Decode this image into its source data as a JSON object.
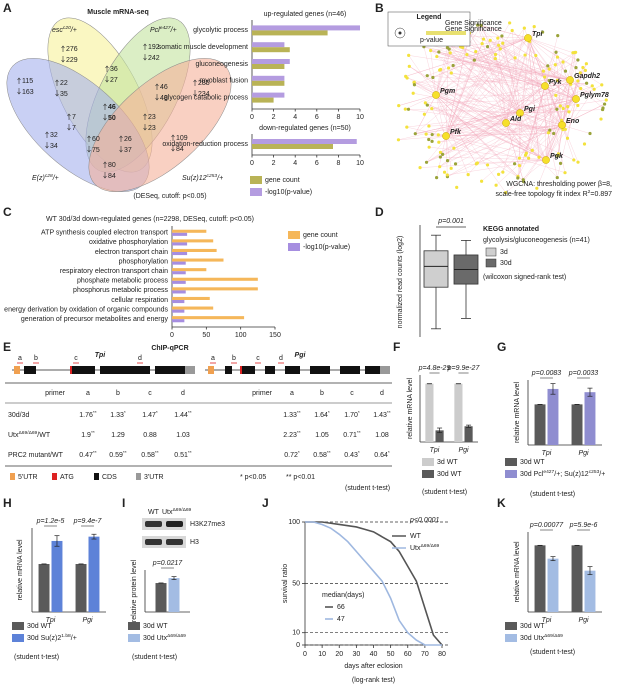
{
  "panels": [
    "A",
    "B",
    "C",
    "D",
    "E",
    "F",
    "G",
    "H",
    "I",
    "J",
    "K"
  ],
  "venn": {
    "title": "Muscle mRNA-seq",
    "sets": [
      {
        "label": [
          "esc",
          "c20",
          "/+"
        ],
        "color": "#f7f29a"
      },
      {
        "label": [
          "Pcl",
          "e427",
          "/+"
        ],
        "color": "#c3e39e"
      },
      {
        "label": [
          "E(z)",
          "c28",
          "/+"
        ],
        "color": "#a5b1ec"
      },
      {
        "label": [
          "Su(z)12",
          "c253",
          "/+"
        ],
        "color": "#f5b09a"
      }
    ],
    "regions": [
      {
        "up": 276,
        "down": 229
      },
      {
        "up": 192,
        "down": 242
      },
      {
        "up": 115,
        "down": 163
      },
      {
        "up": 285,
        "down": 234
      },
      {
        "up": 36,
        "down": 27
      },
      {
        "up": 22,
        "down": 35
      },
      {
        "up": 46,
        "down": 48
      },
      {
        "up": 7,
        "down": 7
      },
      {
        "up": 23,
        "down": 23
      },
      {
        "up": 32,
        "down": 34
      },
      {
        "up": 46,
        "down": 50
      },
      {
        "up": 60,
        "down": 75
      },
      {
        "up": 26,
        "down": 37
      },
      {
        "up": 109,
        "down": 84
      },
      {
        "up": 80,
        "down": 84
      }
    ],
    "note": "(DESeq, cutoff: p<0.05)"
  },
  "network": {
    "legend": {
      "title": "Legend",
      "items": [
        "Gene Significance",
        "Gene Significance",
        "p-value"
      ]
    },
    "genes": [
      "Tpi",
      "Pyk",
      "Gapdh2",
      "Pglym78",
      "Pgm",
      "Pgi",
      "Ald",
      "Eno",
      "Pfk",
      "Pgk"
    ],
    "caption": [
      [
        "WGCNA: thresholding power β=8,"
      ],
      [
        "scale-free topology fit index R",
        "2",
        "=0.897"
      ]
    ]
  },
  "chip": {
    "title": "ChIP-qPCR",
    "rows": [
      "30d/3d",
      [
        "Utx",
        "Δ69/Δ69",
        "/WT"
      ],
      "PRC2 mutant/WT"
    ],
    "genes": [
      {
        "name": "Tpi",
        "primers": [
          "a",
          "b",
          "c",
          "d"
        ],
        "header": "primer",
        "columns": [
          "a",
          "b",
          "c",
          "d"
        ],
        "cells": [
          [
            [
              "1.76",
              "**"
            ],
            [
              "1.33",
              "*"
            ],
            [
              "1.47",
              "*"
            ],
            [
              "1.44",
              "**"
            ]
          ],
          [
            [
              "1.9",
              "**"
            ],
            "1.29",
            "0.88",
            "1.03"
          ],
          [
            [
              "0.47",
              "**"
            ],
            [
              "0.59",
              "**"
            ],
            [
              "0.58",
              "**"
            ],
            [
              "0.51",
              "**"
            ]
          ]
        ]
      },
      {
        "name": "Pgi",
        "primers": [
          "a",
          "b",
          "c",
          "d"
        ],
        "header": "primer",
        "columns": [
          "a",
          "b",
          "c",
          "d"
        ],
        "cells": [
          [
            [
              "1.33",
              "**"
            ],
            [
              "1.64",
              "*"
            ],
            [
              "1.70",
              "*"
            ],
            [
              "1.43",
              "**"
            ]
          ],
          [
            [
              "2.23",
              "**"
            ],
            "1.05",
            [
              "0.71",
              "**"
            ],
            "1.08"
          ],
          [
            [
              "0.72",
              "*"
            ],
            [
              "0.58",
              "**"
            ],
            [
              "0.43",
              "*"
            ],
            [
              "0.64",
              "*"
            ]
          ]
        ]
      }
    ],
    "legend": [
      "5'UTR",
      "ATG",
      "CDS",
      "3'UTR"
    ],
    "sig": [
      "* p<0.05",
      "** p<0.01"
    ],
    "test": "(student t-test)"
  },
  "blot": {
    "lanes": [
      "WT",
      [
        "Utx",
        "Δ69/Δ69"
      ]
    ],
    "bands": [
      "H3K27me3",
      "H3"
    ]
  },
  "chart_data": [
    {
      "type": "bar",
      "horizontal": true,
      "title": "up-regulated genes (n=46)",
      "categories": [
        "glycolytic process",
        "somatic muscle development",
        "gluconeogenesis",
        "myoblast fusion",
        "glycogen catabolic process"
      ],
      "series": [
        {
          "color": "#b9b356",
          "values": [
            7,
            3.5,
            3,
            3,
            2
          ]
        },
        {
          "color": "#b49ce0",
          "values": [
            10,
            3,
            3.5,
            3,
            3
          ]
        }
      ],
      "xlim": [
        0,
        10
      ],
      "xticks": [
        0,
        2,
        4,
        6,
        8,
        10
      ]
    },
    {
      "type": "bar",
      "horizontal": true,
      "title": "down-regulated genes (n=50)",
      "categories": [
        "oxidation-reduction process"
      ],
      "series": [
        {
          "name": "gene count",
          "color": "#b9b356",
          "values": [
            7.5
          ]
        },
        {
          "name": "-log10(p-value)",
          "color": "#b49ce0",
          "values": [
            9.7
          ]
        }
      ],
      "xlim": [
        0,
        10
      ],
      "xticks": [
        0,
        2,
        4,
        6,
        8,
        10
      ]
    },
    {
      "type": "bar",
      "horizontal": true,
      "title": "WT 30d/3d down-regulated genes (n=2298, DESeq, cutoff: p<0.05)",
      "categories": [
        "ATP synthesis coupled electron transport",
        "oxidative phosphorylation",
        "electron transport chain",
        "phosphorylation",
        "respiratory electron transport chain",
        "phosphate metabolic process",
        "phosphorus metabolic process",
        "cellular respiration",
        "energy derivation by oxidation of organic compounds",
        "generation of precursor metabolites and energy"
      ],
      "series": [
        {
          "name": "gene count",
          "color": "#f5b75a",
          "values": [
            50,
            60,
            65,
            75,
            50,
            125,
            125,
            55,
            60,
            105
          ]
        },
        {
          "name": "-log10(p-value)",
          "color": "#a68ee0",
          "values": [
            22,
            22,
            22,
            20,
            20,
            20,
            20,
            18,
            18,
            18
          ]
        }
      ],
      "xlim": [
        0,
        150
      ],
      "xticks": [
        0,
        50,
        100,
        150
      ]
    },
    {
      "type": "box",
      "title": "KEGG annotated",
      "subtitle": "glycolysis/gluconeogenesis (n=41)",
      "ylabel": "normalized read counts (log2)",
      "annotation": "p=0.001",
      "note": "(wilcoxon signed-rank test)",
      "series": [
        {
          "name": "3d",
          "color": "#cfcfcf",
          "box": [
            0.5,
            4.5,
            6.5,
            8.0,
            9.5
          ]
        },
        {
          "name": "30d",
          "color": "#6a6a6a",
          "box": [
            1.5,
            4.8,
            6.2,
            7.6,
            9.0
          ]
        }
      ],
      "ylim": [
        0,
        10
      ]
    },
    {
      "type": "bar",
      "ylabel": "relative mRNA level",
      "categories": [
        "Tpi",
        "Pgi"
      ],
      "annotations": [
        "p=4.8e-29",
        "p=9.9e-27"
      ],
      "note": "(student t-test)",
      "series": [
        {
          "name": "3d WT",
          "color": "#cccccc",
          "values": [
            1,
            1
          ],
          "errors": [
            0,
            0
          ]
        },
        {
          "name": "30d WT",
          "color": "#5a5a5a",
          "values": [
            0.2,
            0.27
          ],
          "errors": [
            0.04,
            0.02
          ]
        }
      ],
      "ylim": [
        0,
        1.15
      ]
    },
    {
      "type": "bar",
      "ylabel": "relative mRNA level",
      "categories": [
        "Tpi",
        "Pgi"
      ],
      "annotations": [
        "p=0.0083",
        "p=0.0033"
      ],
      "note": "(student t-test)",
      "series": [
        {
          "name": "30d WT",
          "color": "#5a5a5a",
          "values": [
            1,
            1
          ],
          "errors": [
            0,
            0
          ]
        },
        {
          "name": [
            "30d Pcl",
            "e427",
            "/+; Su(z)12",
            "c253",
            "/+"
          ],
          "color": "#8f8dd0",
          "values": [
            1.38,
            1.3
          ],
          "errors": [
            0.13,
            0.1
          ]
        }
      ],
      "ylim": [
        0,
        1.6
      ]
    },
    {
      "type": "bar",
      "ylabel": "relative mRNA level",
      "categories": [
        "Tpi",
        "Pgi"
      ],
      "annotations": [
        "p=1.2e-5",
        "p=9.4e-7"
      ],
      "note": "(student t-test)",
      "series": [
        {
          "name": "30d WT",
          "color": "#5a5a5a",
          "values": [
            1,
            1
          ],
          "errors": [
            0,
            0
          ]
        },
        {
          "name": [
            "30d Su(z)2",
            "1.b8",
            "/+"
          ],
          "color": "#5d82d8",
          "values": [
            1.48,
            1.57
          ],
          "errors": [
            0.11,
            0.05
          ]
        }
      ],
      "ylim": [
        0,
        1.75
      ]
    },
    {
      "type": "bar",
      "ylabel": "relative protein level",
      "categories": [
        null
      ],
      "annotations": [
        "p=0.0217"
      ],
      "note": "(student t-test)",
      "series": [
        {
          "name": "30d WT",
          "color": "#5a5a5a",
          "values": [
            1
          ],
          "errors": [
            0
          ]
        },
        {
          "name": [
            "30d Utx",
            "Δ69/Δ69"
          ],
          "color": "#a3bce3",
          "values": [
            1.17
          ],
          "errors": [
            0.05
          ]
        }
      ],
      "ylim": [
        0,
        1.45
      ]
    },
    {
      "type": "line",
      "ylabel": "survival ratio",
      "xlabel": "days after eclosion",
      "note": "(log-rank test)",
      "annotation": "p<0.0001",
      "median_label": "median(days)",
      "x": [
        0,
        5,
        10,
        15,
        20,
        25,
        30,
        35,
        40,
        45,
        50,
        55,
        60,
        65,
        70,
        75,
        80
      ],
      "series": [
        {
          "name": "WT",
          "color": "#555555",
          "median": 66,
          "values": [
            100,
            100,
            100,
            99,
            98,
            97,
            96,
            94,
            92,
            88,
            84,
            76,
            64,
            52,
            30,
            8,
            0
          ]
        },
        {
          "name": [
            "Utx",
            "Δ69/Δ69"
          ],
          "color": "#9fb8e0",
          "median": 47,
          "values": [
            100,
            100,
            98,
            95,
            90,
            84,
            76,
            68,
            60,
            52,
            38,
            20,
            10,
            4,
            0,
            0,
            0
          ]
        }
      ],
      "xlim": [
        0,
        80
      ],
      "xticks": [
        0,
        10,
        20,
        30,
        40,
        50,
        60,
        70,
        80
      ],
      "ylim": [
        0,
        100
      ],
      "yticks": [
        0,
        10,
        50,
        100
      ],
      "grid": true
    },
    {
      "type": "bar",
      "ylabel": "relative mRNA level",
      "categories": [
        "Tpi",
        "Pgi"
      ],
      "annotations": [
        "p=0.00077",
        "p=5.9e-6"
      ],
      "note": "(student t-test)",
      "series": [
        {
          "name": "30d WT",
          "color": "#5a5a5a",
          "values": [
            1,
            1
          ],
          "errors": [
            0,
            0
          ]
        },
        {
          "name": [
            "30d Utx",
            "Δ69/Δ69"
          ],
          "color": "#a3bce3",
          "values": [
            0.8,
            0.62
          ],
          "errors": [
            0.03,
            0.06
          ]
        }
      ],
      "ylim": [
        0,
        1.2
      ]
    }
  ]
}
